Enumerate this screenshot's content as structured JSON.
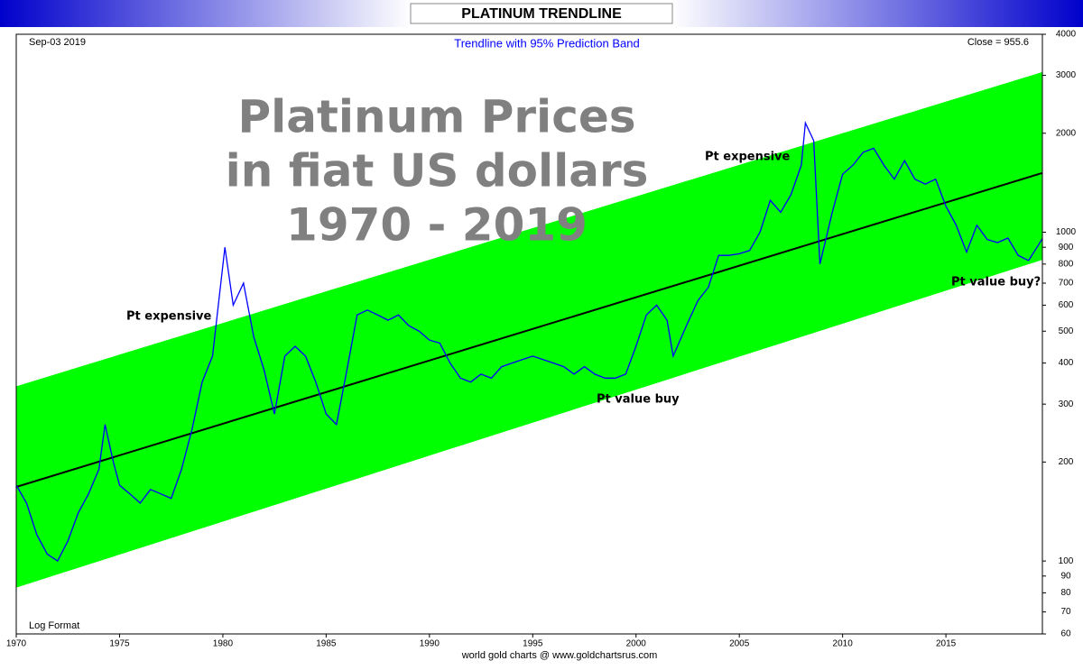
{
  "chart_data": {
    "type": "line",
    "title": "PLATINUM TRENDLINE",
    "subtitle": "Trendline with 95% Prediction Band",
    "date_label": "Sep-03  2019",
    "close_label": "Close = 955.6",
    "overlay_title": [
      "Platinum Prices",
      "in fiat US dollars",
      "1970 - 2019"
    ],
    "scale_label": "Log Format",
    "footer": "world gold charts @ www.goldchartsrus.com",
    "annotations": [
      "Pt expensive",
      "Pt expensive",
      "Pt value buy",
      "Pt value buy?"
    ],
    "log_y": true,
    "xlim": [
      1970,
      2019.67
    ],
    "ylim": [
      60,
      4000
    ],
    "xticks": [
      1970,
      1975,
      1980,
      1985,
      1990,
      1995,
      2000,
      2005,
      2010,
      2015
    ],
    "yticks": [
      60,
      70,
      80,
      90,
      100,
      200,
      300,
      400,
      500,
      600,
      700,
      800,
      900,
      1000,
      2000,
      3000,
      4000
    ],
    "band": {
      "color": "#00ff00",
      "x": [
        1970,
        2019.67
      ],
      "upper": [
        340,
        3070
      ],
      "lower": [
        83,
        824
      ]
    },
    "trendline": {
      "color": "#000000",
      "x": [
        1970,
        2019.67
      ],
      "values": [
        168,
        1514
      ]
    },
    "price": {
      "color": "#0000ff",
      "x": [
        1970.0,
        1970.5,
        1971.0,
        1971.5,
        1972.0,
        1972.5,
        1973.0,
        1973.5,
        1974.0,
        1974.3,
        1974.7,
        1975.0,
        1975.5,
        1976.0,
        1976.5,
        1977.0,
        1977.5,
        1978.0,
        1978.5,
        1979.0,
        1979.5,
        1980.1,
        1980.5,
        1981.0,
        1981.5,
        1982.0,
        1982.5,
        1983.0,
        1983.5,
        1984.0,
        1984.5,
        1985.0,
        1985.5,
        1986.0,
        1986.5,
        1987.0,
        1987.5,
        1988.0,
        1988.5,
        1989.0,
        1989.5,
        1990.0,
        1990.5,
        1991.0,
        1991.5,
        1992.0,
        1992.5,
        1993.0,
        1993.5,
        1994.0,
        1994.5,
        1995.0,
        1995.5,
        1996.0,
        1996.5,
        1997.0,
        1997.5,
        1998.0,
        1998.5,
        1999.0,
        1999.5,
        2000.0,
        2000.5,
        2001.0,
        2001.5,
        2001.8,
        2002.5,
        2003.0,
        2003.5,
        2004.0,
        2004.5,
        2005.0,
        2005.5,
        2006.0,
        2006.5,
        2007.0,
        2007.5,
        2008.0,
        2008.2,
        2008.6,
        2008.9,
        2009.5,
        2010.0,
        2010.5,
        2011.0,
        2011.5,
        2012.0,
        2012.5,
        2013.0,
        2013.5,
        2014.0,
        2014.5,
        2015.0,
        2015.5,
        2016.0,
        2016.5,
        2017.0,
        2017.5,
        2018.0,
        2018.5,
        2019.0,
        2019.67
      ],
      "values": [
        170,
        150,
        120,
        105,
        100,
        115,
        140,
        160,
        190,
        260,
        200,
        170,
        160,
        150,
        165,
        160,
        155,
        190,
        250,
        350,
        420,
        900,
        600,
        700,
        480,
        380,
        280,
        420,
        450,
        420,
        350,
        280,
        260,
        380,
        560,
        580,
        560,
        540,
        560,
        520,
        500,
        470,
        460,
        400,
        360,
        350,
        370,
        360,
        390,
        400,
        410,
        420,
        410,
        400,
        390,
        370,
        390,
        370,
        360,
        360,
        370,
        450,
        560,
        600,
        540,
        420,
        530,
        620,
        680,
        850,
        850,
        860,
        880,
        1000,
        1250,
        1150,
        1300,
        1600,
        2150,
        1900,
        800,
        1150,
        1500,
        1600,
        1750,
        1800,
        1600,
        1450,
        1650,
        1450,
        1400,
        1450,
        1200,
        1050,
        870,
        1050,
        950,
        930,
        960,
        850,
        820,
        955.6
      ]
    }
  }
}
